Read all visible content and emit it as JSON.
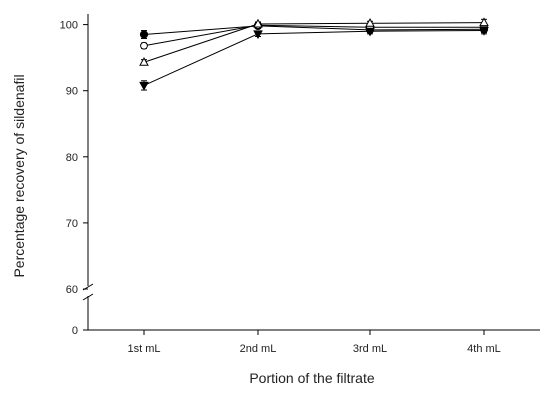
{
  "chart_data": {
    "type": "line",
    "xlabel": "Portion of the filtrate",
    "ylabel": "Percentage recovery of sildenafil",
    "categories": [
      "1st mL",
      "2nd mL",
      "3rd mL",
      "4th mL"
    ],
    "y_ticks": [
      0,
      60,
      70,
      80,
      90,
      100
    ],
    "y_axis_break": [
      0,
      60
    ],
    "ylim": [
      60,
      102
    ],
    "grid": false,
    "legend": "none",
    "series": [
      {
        "marker": "filled-circle",
        "values": [
          98.5,
          99.8,
          99.2,
          99.3
        ],
        "errors": [
          0.6,
          0.3,
          0.4,
          0.5
        ]
      },
      {
        "marker": "open-circle",
        "values": [
          96.8,
          99.9,
          99.6,
          99.6
        ],
        "errors": [
          0.4,
          0.3,
          0.3,
          0.4
        ]
      },
      {
        "marker": "open-triangle",
        "values": [
          94.3,
          100.1,
          100.2,
          100.3
        ],
        "errors": [
          0.4,
          0.3,
          0.3,
          0.5
        ]
      },
      {
        "marker": "filled-triangle-down",
        "values": [
          90.8,
          98.6,
          99.0,
          99.1
        ],
        "errors": [
          0.7,
          0.4,
          0.4,
          0.5
        ]
      }
    ],
    "colors": {
      "ink": "#000000"
    }
  }
}
